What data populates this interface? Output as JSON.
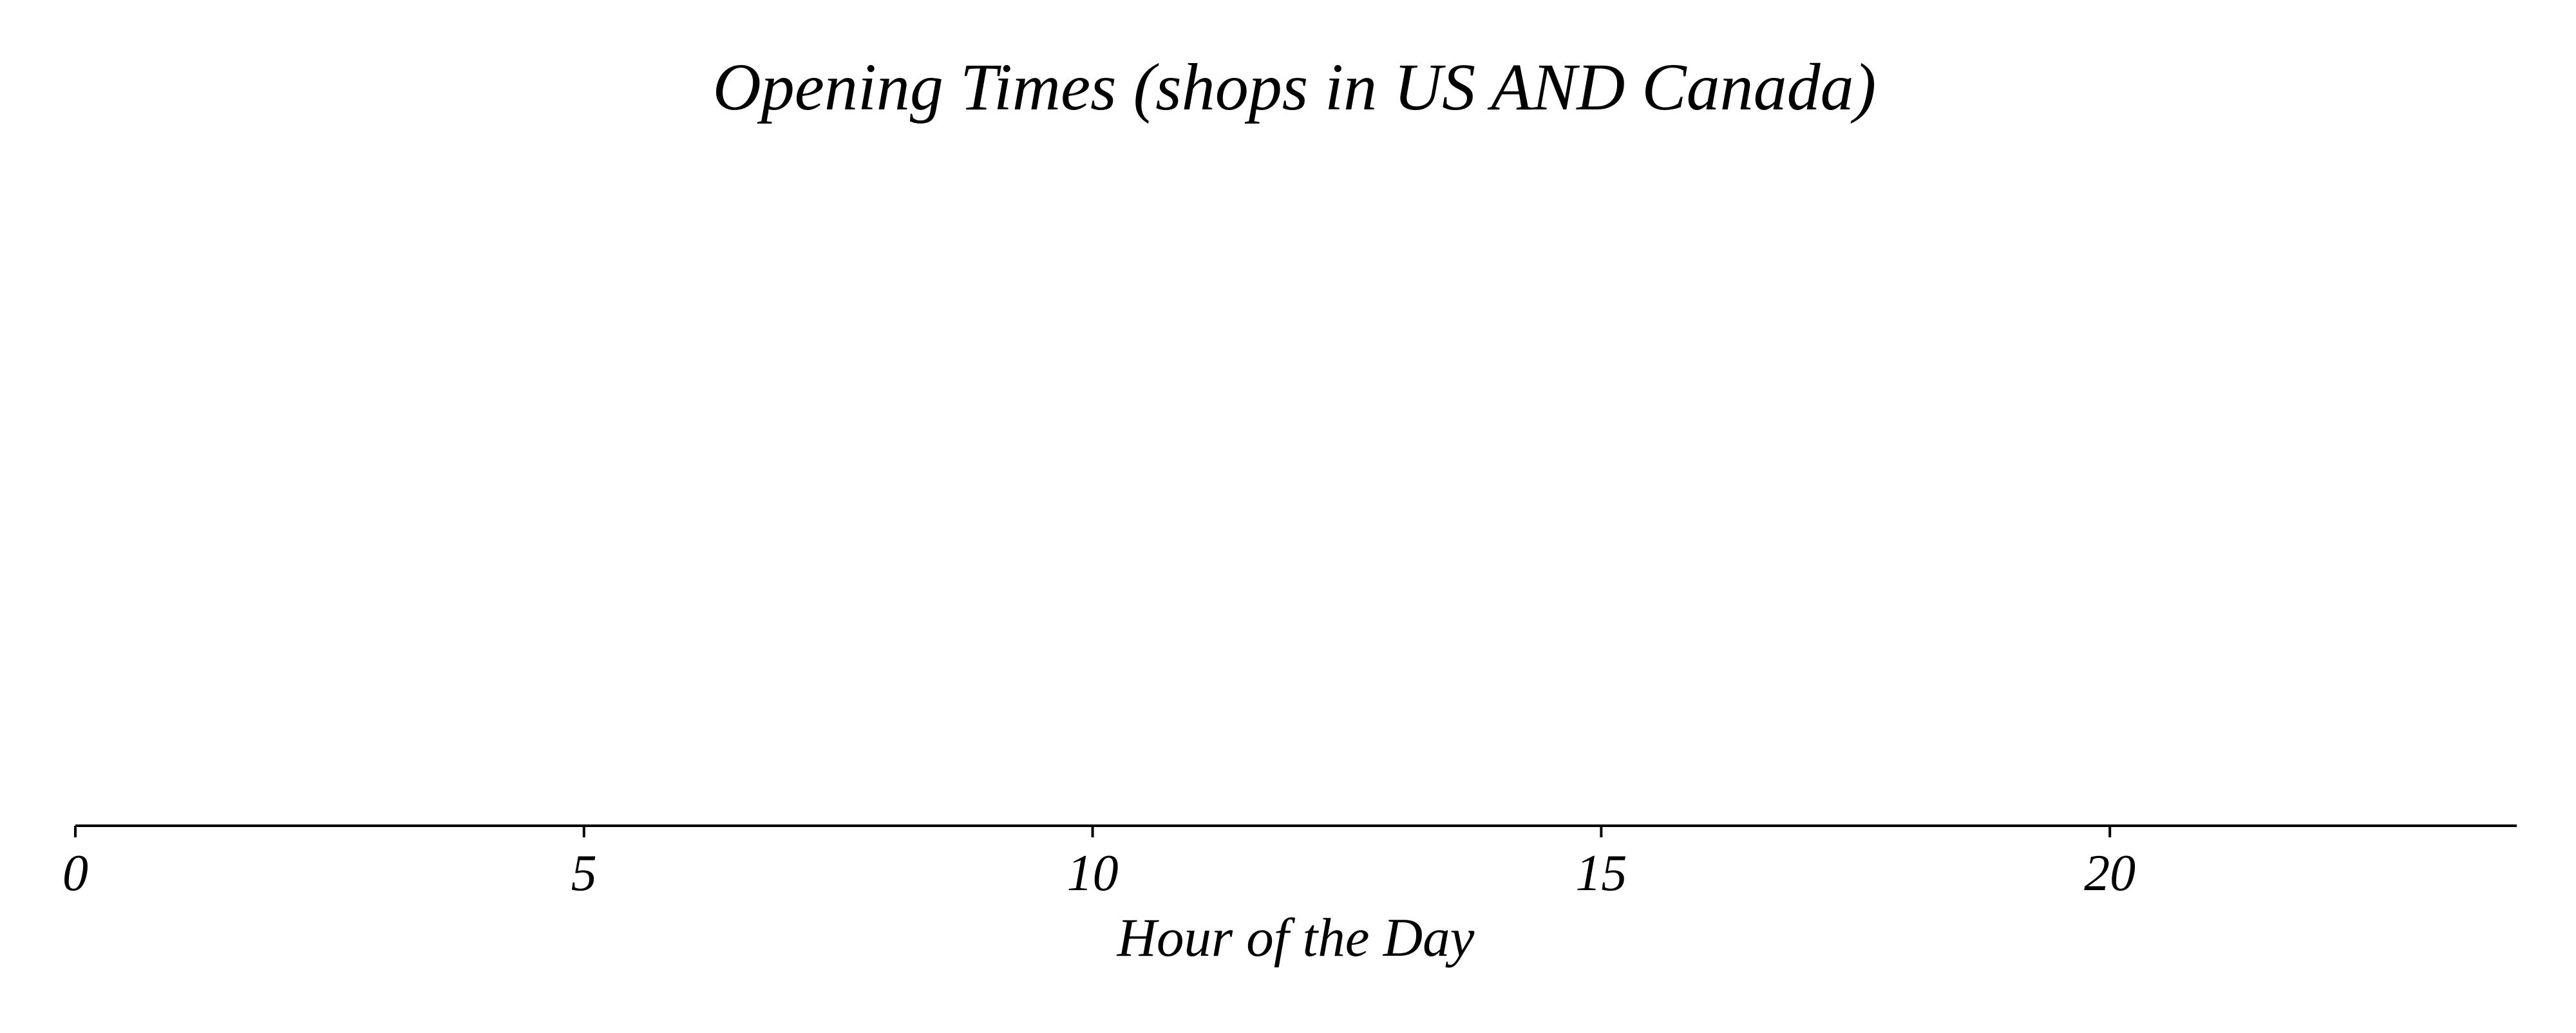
{
  "chart_data": {
    "type": "bar",
    "title": "Opening Times (shops in US AND Canada)",
    "xlabel": "Hour of the Day",
    "ylabel": "",
    "xlim": [
      0,
      24
    ],
    "xticks": [
      0,
      5,
      10,
      15,
      20
    ],
    "xtick_labels": [
      "0",
      "5",
      "10",
      "15",
      "20"
    ],
    "series": [],
    "grid": false,
    "legend": "none",
    "colors": {
      "axis": "#000000",
      "background": "#ffffff"
    }
  }
}
